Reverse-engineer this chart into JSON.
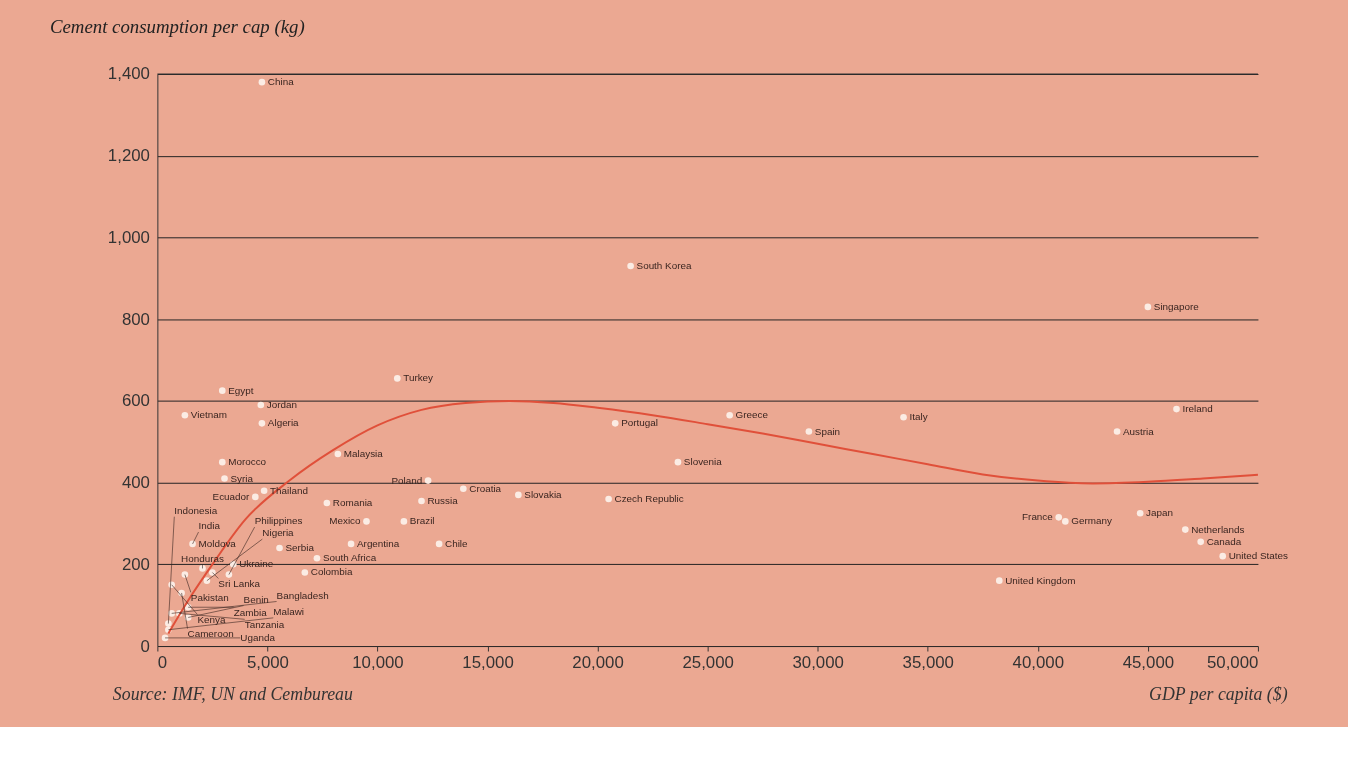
{
  "chart_data": {
    "type": "scatter",
    "title": "Cement consumption per cap (kg)",
    "xlabel": "GDP per capita ($)",
    "xlim": [
      0,
      50000
    ],
    "ylim": [
      0,
      1400
    ],
    "xticks": [
      0,
      {
        "value": 5000,
        "label": "5,000"
      },
      {
        "value": 10000,
        "label": "10,000"
      },
      {
        "value": 15000,
        "label": "15,000"
      },
      {
        "value": 20000,
        "label": "20,000"
      },
      {
        "value": 25000,
        "label": "25,000"
      },
      {
        "value": 30000,
        "label": "30,000"
      },
      {
        "value": 35000,
        "label": "35,000"
      },
      {
        "value": 40000,
        "label": "40,000"
      },
      {
        "value": 45000,
        "label": "45,000"
      },
      {
        "value": 50000,
        "label": "50,000"
      }
    ],
    "yticks": [
      0,
      200,
      400,
      600,
      800,
      {
        "value": 1000,
        "label": "1,000"
      },
      {
        "value": 1200,
        "label": "1,200"
      },
      {
        "value": 1400,
        "label": "1,400"
      }
    ],
    "grid": "y",
    "marker": "circle",
    "series": [
      {
        "type": "scatter",
        "color": "#fbece4",
        "x": [
          4750,
          2950,
          4700,
          4750,
          8200,
          2950,
          3050,
          4450,
          4850,
          7700,
          9500,
          11200,
          12000,
          12300,
          13900,
          16400,
          12800,
          8800,
          7250,
          5550,
          6700,
          10900,
          1600,
          1250,
          2050,
          2500,
          3450,
          3250,
          1250,
          650,
          1100,
          2250,
          1400,
          650,
          1000,
          1400,
          500,
          350,
          500,
          21500,
          45000,
          46300,
          33900,
          43600,
          26000,
          29600,
          20800,
          23650,
          20500,
          38250,
          40950,
          41250,
          44650,
          46700,
          47400,
          48400
        ],
        "values": [
          1380,
          625,
          590,
          545,
          470,
          450,
          410,
          365,
          380,
          350,
          305,
          305,
          355,
          405,
          385,
          370,
          250,
          250,
          215,
          240,
          180,
          655,
          250,
          565,
          190,
          180,
          200,
          175,
          175,
          150,
          130,
          160,
          95,
          80,
          80,
          70,
          55,
          20,
          40,
          930,
          830,
          580,
          560,
          525,
          565,
          525,
          545,
          450,
          360,
          160,
          315,
          305,
          325,
          285,
          255,
          220
        ]
      },
      {
        "type": "line",
        "color": "#e0503a",
        "line_style": "solid",
        "marker": "none",
        "x": [
          500,
          1500,
          2500,
          4000,
          6000,
          8000,
          10000,
          12000,
          14000,
          16000,
          18000,
          20000,
          22500,
          25000,
          27500,
          30000,
          32500,
          35000,
          37500,
          40000,
          42500,
          45000,
          47500,
          50000
        ],
        "values": [
          31,
          120,
          200,
          310,
          405,
          480,
          540,
          578,
          595,
          600,
          595,
          583,
          565,
          543,
          520,
          495,
          470,
          445,
          420,
          405,
          398,
          402,
          410,
          419
        ]
      }
    ],
    "annotations": [
      {
        "text": "China",
        "x": 4750,
        "y": 1380
      },
      {
        "text": "Egypt",
        "x": 2950,
        "y": 625
      },
      {
        "text": "Jordan",
        "x": 4700,
        "y": 590
      },
      {
        "text": "Algeria",
        "x": 4750,
        "y": 545
      },
      {
        "text": "Malaysia",
        "x": 8200,
        "y": 470
      },
      {
        "text": "Morocco",
        "x": 2950,
        "y": 450
      },
      {
        "text": "Syria",
        "x": 3050,
        "y": 410
      },
      {
        "text": "Ecuador",
        "x": 4450,
        "y": 365
      },
      {
        "text": "Thailand",
        "x": 4850,
        "y": 380
      },
      {
        "text": "Romania",
        "x": 7700,
        "y": 350
      },
      {
        "text": "Mexico",
        "x": 9500,
        "y": 305
      },
      {
        "text": "Brazil",
        "x": 11200,
        "y": 305
      },
      {
        "text": "Russia",
        "x": 12000,
        "y": 355
      },
      {
        "text": "Poland",
        "x": 12300,
        "y": 405
      },
      {
        "text": "Croatia",
        "x": 13900,
        "y": 385
      },
      {
        "text": "Slovakia",
        "x": 16400,
        "y": 370
      },
      {
        "text": "Chile",
        "x": 12800,
        "y": 250
      },
      {
        "text": "Argentina",
        "x": 8800,
        "y": 250
      },
      {
        "text": "South Africa",
        "x": 7250,
        "y": 215
      },
      {
        "text": "Serbia",
        "x": 5550,
        "y": 240
      },
      {
        "text": "Colombia",
        "x": 6700,
        "y": 180
      },
      {
        "text": "Turkey",
        "x": 10900,
        "y": 655
      },
      {
        "text": "Moldova",
        "x": 1600,
        "y": 250
      },
      {
        "text": "India",
        "x": 1600,
        "y": 250
      },
      {
        "text": "Vietnam",
        "x": 1250,
        "y": 565
      },
      {
        "text": "Honduras",
        "x": 2050,
        "y": 190
      },
      {
        "text": "Sri Lanka",
        "x": 2500,
        "y": 180
      },
      {
        "text": "Ukraine",
        "x": 3450,
        "y": 200
      },
      {
        "text": "Philippines",
        "x": 3250,
        "y": 175
      },
      {
        "text": "Pakistan",
        "x": 1250,
        "y": 175
      },
      {
        "text": "Kenya",
        "x": 650,
        "y": 150
      },
      {
        "text": "Cameroon",
        "x": 1100,
        "y": 130
      },
      {
        "text": "Nigeria",
        "x": 2250,
        "y": 160
      },
      {
        "text": "Zambia",
        "x": 1400,
        "y": 95
      },
      {
        "text": "Bangladesh",
        "x": 650,
        "y": 80
      },
      {
        "text": "Tanzania",
        "x": 1000,
        "y": 80
      },
      {
        "text": "Benin",
        "x": 1400,
        "y": 70
      },
      {
        "text": "Indonesia",
        "x": 500,
        "y": 55
      },
      {
        "text": "Uganda",
        "x": 350,
        "y": 20
      },
      {
        "text": "Malawi",
        "x": 500,
        "y": 40
      },
      {
        "text": "South Korea",
        "x": 21500,
        "y": 930
      },
      {
        "text": "Singapore",
        "x": 45000,
        "y": 830
      },
      {
        "text": "Ireland",
        "x": 46300,
        "y": 580
      },
      {
        "text": "Italy",
        "x": 33900,
        "y": 560
      },
      {
        "text": "Austria",
        "x": 43600,
        "y": 525
      },
      {
        "text": "Greece",
        "x": 26000,
        "y": 565
      },
      {
        "text": "Spain",
        "x": 29600,
        "y": 525
      },
      {
        "text": "Portugal",
        "x": 20800,
        "y": 545
      },
      {
        "text": "Slovenia",
        "x": 23650,
        "y": 450
      },
      {
        "text": "Czech Republic",
        "x": 20500,
        "y": 360
      },
      {
        "text": "United Kingdom",
        "x": 38250,
        "y": 160
      },
      {
        "text": "France",
        "x": 40950,
        "y": 315
      },
      {
        "text": "Germany",
        "x": 41250,
        "y": 305
      },
      {
        "text": "Japan",
        "x": 44650,
        "y": 325
      },
      {
        "text": "Netherlands",
        "x": 46700,
        "y": 285
      },
      {
        "text": "Canada",
        "x": 47400,
        "y": 255
      },
      {
        "text": "United States",
        "x": 48400,
        "y": 220
      },
      "Source: IMF, UN and Cembureau"
    ]
  }
}
